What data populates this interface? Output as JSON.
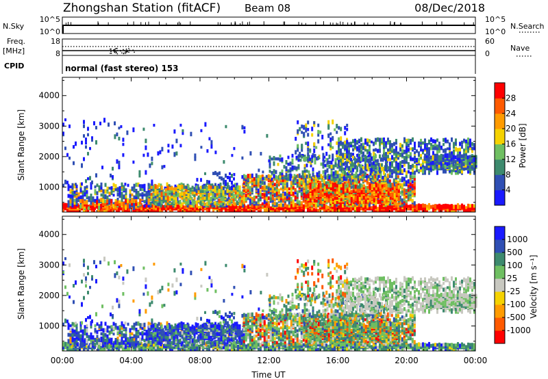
{
  "header": {
    "station": "Zhongshan Station (fitACF)",
    "beam": "Beam 08",
    "date": "08/Dec/2018"
  },
  "status_panels": {
    "nsky_label": "N.Sky",
    "nsky_ticks": [
      "10^5",
      "10^0"
    ],
    "nsearch_label": "N.Search",
    "nsearch_ticks": [
      "10^5",
      "10^0"
    ],
    "freq_label_1": "Freq.",
    "freq_label_2": "[MHz]",
    "freq_ticks": [
      "18",
      "8"
    ],
    "nave_label": "Nave",
    "nave_ticks": [
      "60",
      "0"
    ],
    "cpid_label": "CPID",
    "cpid_text": "normal (fast stereo) 153"
  },
  "colors": {
    "power_scale": [
      "#1a1aff",
      "#2f4fb4",
      "#3d8a6e",
      "#6fbf62",
      "#f5d200",
      "#ff9b00",
      "#ff5a00",
      "#ff0000"
    ],
    "velocity_scale": [
      "#ff0000",
      "#ff5a00",
      "#ff9b00",
      "#f5d200",
      "#c8c8c0",
      "#6fbf62",
      "#3d8a6e",
      "#2f4fb4",
      "#1a1aff"
    ]
  },
  "chart_data": [
    {
      "type": "heatmap",
      "name": "power",
      "xlabel": "",
      "ylabel": "Slant Range [km]",
      "x_ticks": [
        "00:00",
        "04:00",
        "08:00",
        "12:00",
        "16:00",
        "20:00",
        "00:00"
      ],
      "x_range_hours": [
        0,
        24
      ],
      "y_ticks": [
        "1000",
        "2000",
        "3000",
        "4000"
      ],
      "ylim": [
        180,
        4600
      ],
      "colorbar_label": "Power [dB]",
      "colorbar_ticks": [
        "4",
        "8",
        "12",
        "16",
        "20",
        "24",
        "28"
      ],
      "crange": [
        0,
        30
      ]
    },
    {
      "type": "heatmap",
      "name": "velocity",
      "xlabel": "Time UT",
      "ylabel": "Slant Range [km]",
      "x_ticks": [
        "00:00",
        "04:00",
        "08:00",
        "12:00",
        "16:00",
        "20:00",
        "00:00"
      ],
      "x_range_hours": [
        0,
        24
      ],
      "y_ticks": [
        "1000",
        "2000",
        "3000",
        "4000"
      ],
      "ylim": [
        180,
        4600
      ],
      "colorbar_label": "Velocity [m s⁻¹]",
      "colorbar_ticks": [
        "1000",
        "500",
        "100",
        "25",
        "-25",
        "-100",
        "-500",
        "-1000"
      ]
    }
  ]
}
